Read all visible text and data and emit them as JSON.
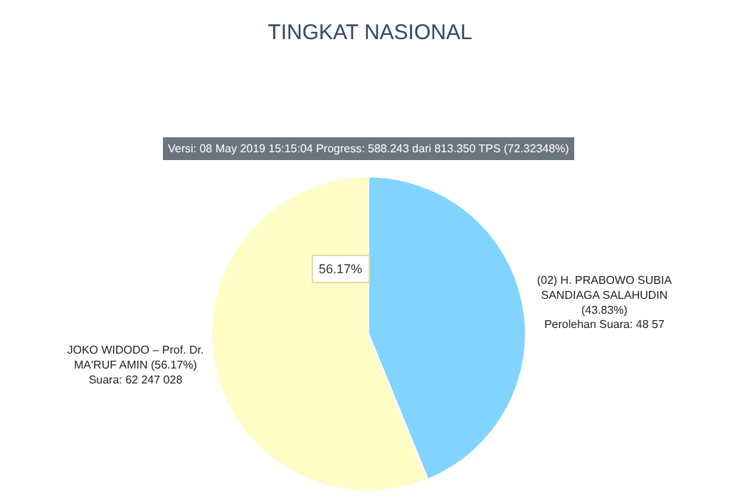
{
  "chart_data": {
    "type": "pie",
    "title": "TINGKAT NASIONAL",
    "subtitle": "Versi: 08 May 2019 15:15:04 Progress: 588.243 dari 813.350 TPS (72.32348%)",
    "categories": [
      "JOKO WIDODO – Prof. Dr.\nMA'RUF AMIN (56.17%)\nSuara: 62 247 028",
      "(02) H. PRABOWO SUBIA\nSANDIAGA SALAHUDIN\n(43.83%)\nPerolehan Suara: 48 57"
    ],
    "values": [
      56.17,
      43.83
    ],
    "colors": [
      "#fffdc6",
      "#80d4ff"
    ],
    "annotations": [
      "56.17%"
    ],
    "legend": false
  }
}
